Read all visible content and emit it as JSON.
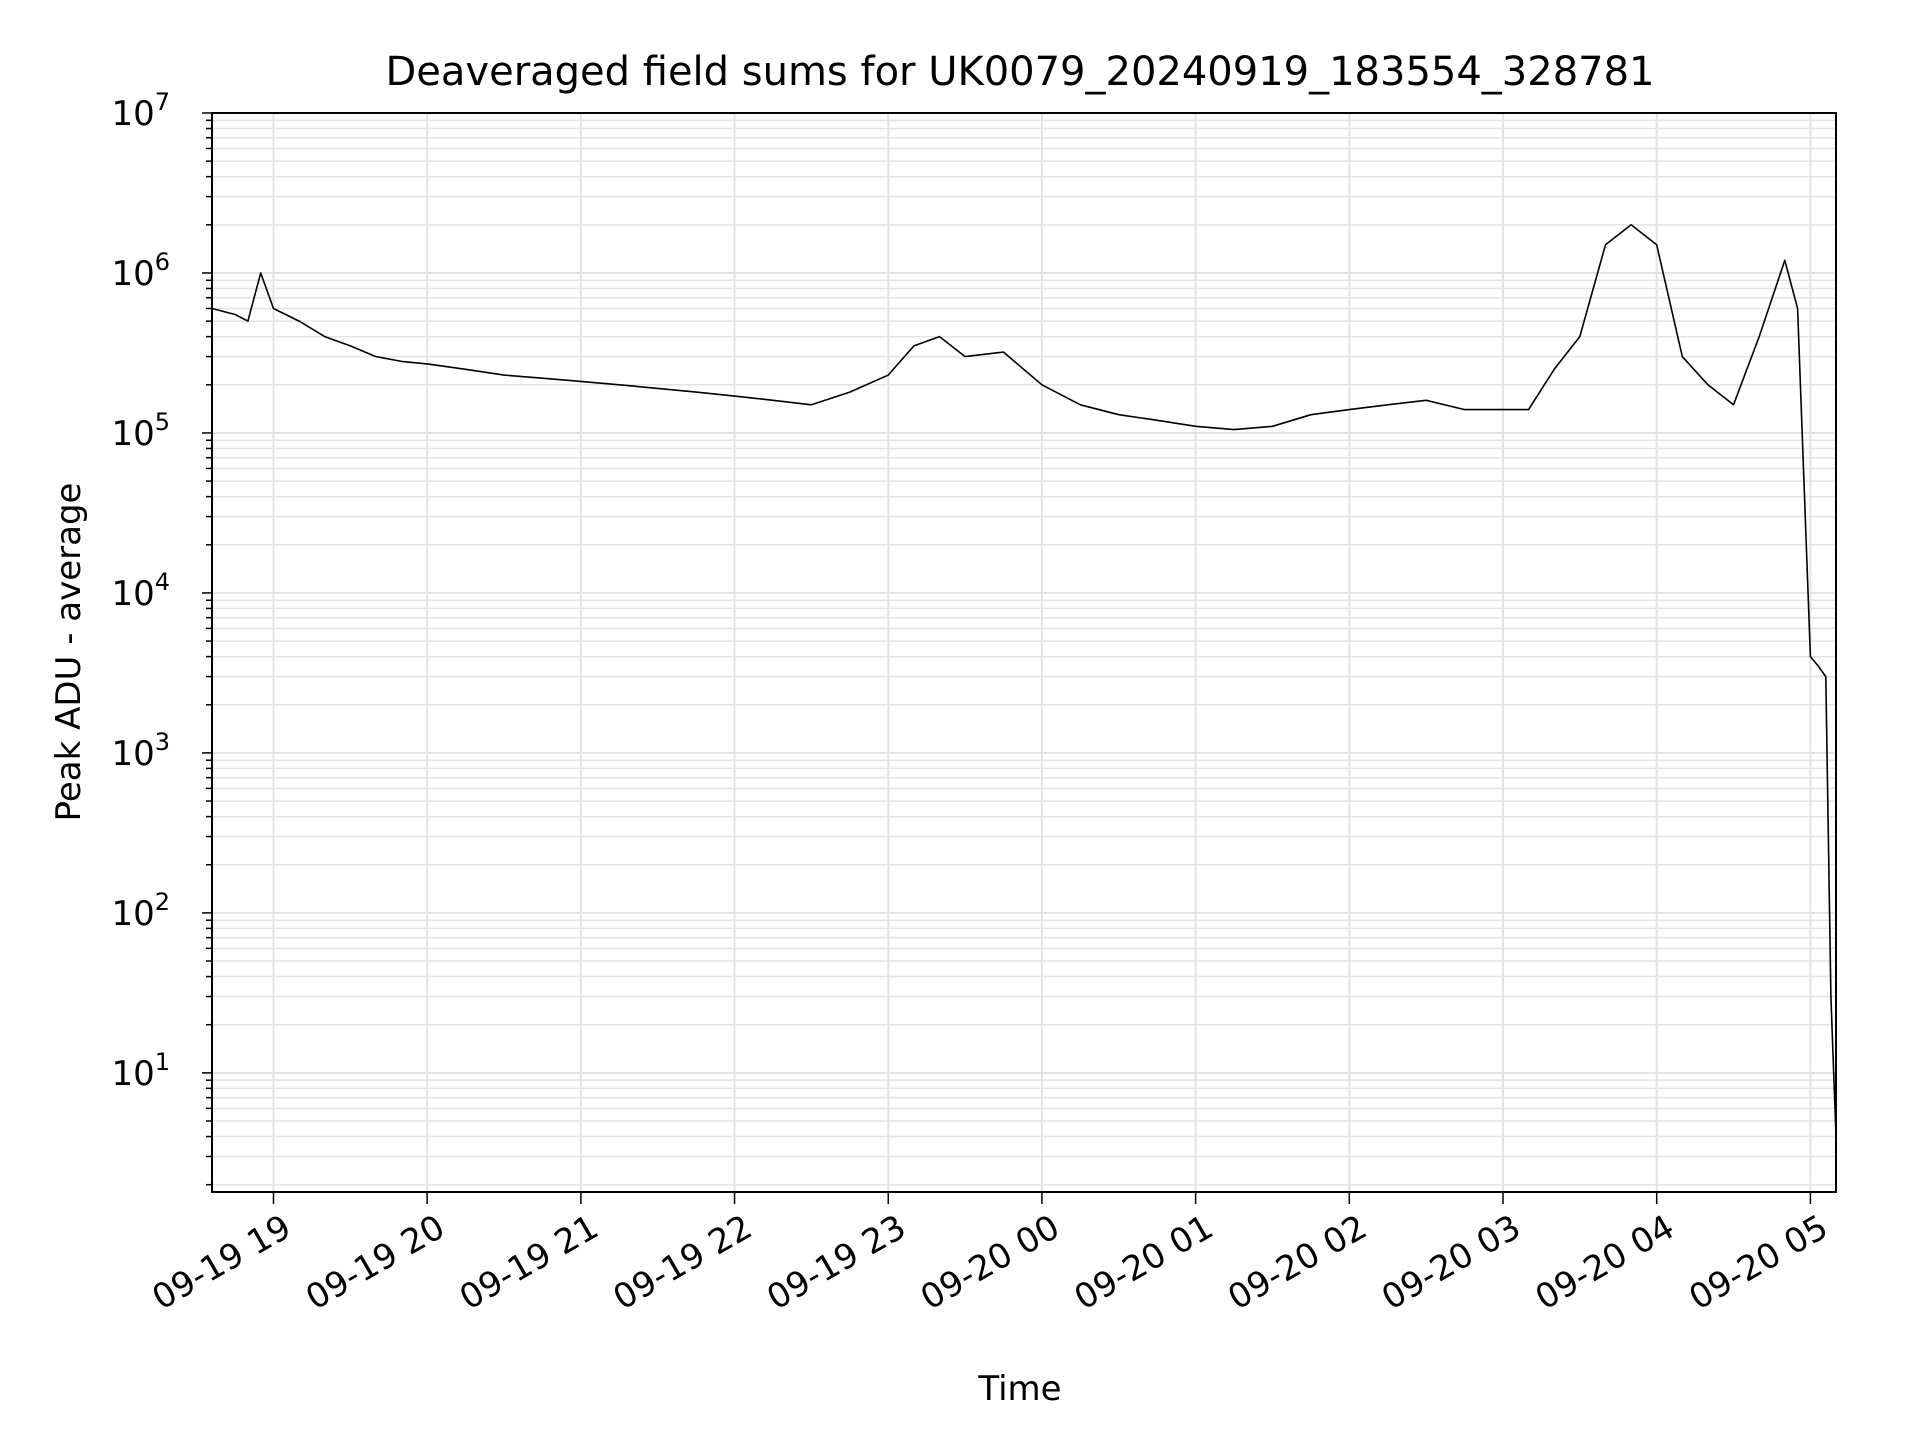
{
  "chart_data": {
    "type": "line",
    "title": "Deaveraged field sums for UK0079_20240919_183554_328781",
    "xlabel": "Time",
    "ylabel": "Peak ADU - average",
    "y_scale": "log",
    "ylim": [
      1.8,
      10000000
    ],
    "xlim": [
      "2024-09-19 18:36",
      "2024-09-20 05:10"
    ],
    "grid": true,
    "line_color": "#000000",
    "grid_color": "#e3e3e3",
    "x_ticks": [
      "09-19 19",
      "09-19 20",
      "09-19 21",
      "09-19 22",
      "09-19 23",
      "09-20 00",
      "09-20 01",
      "09-20 02",
      "09-20 03",
      "09-20 04",
      "09-20 05"
    ],
    "y_ticks": [
      {
        "base": "10",
        "exp": "1",
        "value": 10
      },
      {
        "base": "10",
        "exp": "2",
        "value": 100
      },
      {
        "base": "10",
        "exp": "3",
        "value": 1000
      },
      {
        "base": "10",
        "exp": "4",
        "value": 10000
      },
      {
        "base": "10",
        "exp": "5",
        "value": 100000
      },
      {
        "base": "10",
        "exp": "6",
        "value": 1000000
      },
      {
        "base": "10",
        "exp": "7",
        "value": 10000000
      }
    ],
    "series": [
      {
        "x": [
          "2024-09-19 18:36",
          "2024-09-19 18:45",
          "2024-09-19 18:50",
          "2024-09-19 18:55",
          "2024-09-19 19:00",
          "2024-09-19 19:10",
          "2024-09-19 19:20",
          "2024-09-19 19:30",
          "2024-09-19 19:40",
          "2024-09-19 19:50",
          "2024-09-19 20:00",
          "2024-09-19 20:15",
          "2024-09-19 20:30",
          "2024-09-19 20:45",
          "2024-09-19 21:00",
          "2024-09-19 21:15",
          "2024-09-19 21:30",
          "2024-09-19 21:45",
          "2024-09-19 22:00",
          "2024-09-19 22:15",
          "2024-09-19 22:30",
          "2024-09-19 22:45",
          "2024-09-19 23:00",
          "2024-09-19 23:10",
          "2024-09-19 23:20",
          "2024-09-19 23:30",
          "2024-09-19 23:45",
          "2024-09-20 00:00",
          "2024-09-20 00:15",
          "2024-09-20 00:30",
          "2024-09-20 00:45",
          "2024-09-20 01:00",
          "2024-09-20 01:15",
          "2024-09-20 01:30",
          "2024-09-20 01:45",
          "2024-09-20 02:00",
          "2024-09-20 02:15",
          "2024-09-20 02:30",
          "2024-09-20 02:45",
          "2024-09-20 03:00",
          "2024-09-20 03:10",
          "2024-09-20 03:20",
          "2024-09-20 03:30",
          "2024-09-20 03:40",
          "2024-09-20 03:50",
          "2024-09-20 04:00",
          "2024-09-20 04:10",
          "2024-09-20 04:20",
          "2024-09-20 04:30",
          "2024-09-20 04:40",
          "2024-09-20 04:50",
          "2024-09-20 04:55",
          "2024-09-20 05:00",
          "2024-09-20 05:03",
          "2024-09-20 05:06",
          "2024-09-20 05:08",
          "2024-09-20 05:10"
        ],
        "y": [
          600000,
          550000,
          500000,
          1000000,
          600000,
          500000,
          400000,
          350000,
          300000,
          280000,
          270000,
          250000,
          230000,
          220000,
          210000,
          200000,
          190000,
          180000,
          170000,
          160000,
          150000,
          180000,
          230000,
          350000,
          400000,
          300000,
          320000,
          200000,
          150000,
          130000,
          120000,
          110000,
          105000,
          110000,
          130000,
          140000,
          150000,
          160000,
          140000,
          140000,
          140000,
          250000,
          400000,
          1500000,
          2000000,
          1500000,
          300000,
          200000,
          150000,
          400000,
          1200000,
          600000,
          4000,
          3500,
          3000,
          30,
          4
        ]
      }
    ]
  }
}
